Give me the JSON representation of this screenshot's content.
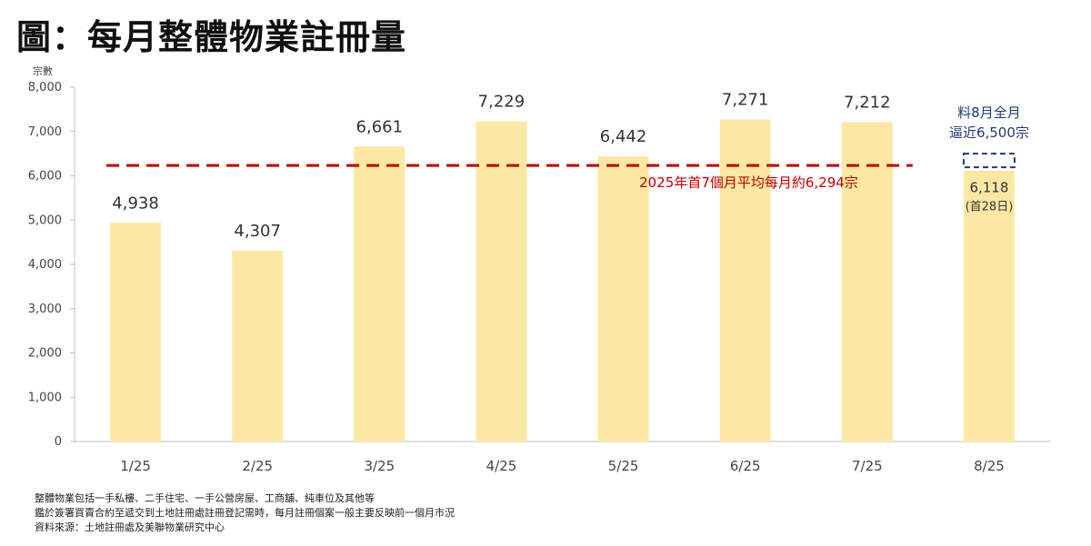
{
  "page_title": "圖：每月整體物業註冊量",
  "colors": {
    "bar": "#fde8a3",
    "average_line": "#c00000",
    "forecast": "#1f3a78",
    "axis_text": "#444444",
    "value_label": "#333333"
  },
  "chart_data": {
    "type": "bar",
    "title": "",
    "xlabel": "",
    "ylabel": "宗數",
    "ylim": [
      0,
      8000
    ],
    "ytick_step": 1000,
    "grid": false,
    "categories": [
      "1/25",
      "2/25",
      "3/25",
      "4/25",
      "5/25",
      "6/25",
      "7/25",
      "8/25"
    ],
    "values": [
      4938,
      4307,
      6661,
      7229,
      6442,
      7271,
      7212,
      6118
    ],
    "value_labels": [
      "4,938",
      "4,307",
      "6,661",
      "7,229",
      "6,442",
      "7,271",
      "7,212",
      "6,118"
    ],
    "partial_month_note": "(首28日)",
    "average": {
      "value": 6294,
      "label": "2025年首7個月平均每月約6,294宗",
      "from_category": "1/25",
      "to_category": "7/25"
    },
    "forecast": {
      "category": "8/25",
      "value": 6500,
      "label_lines": [
        "料8月全月",
        "逼近6,500宗"
      ]
    }
  },
  "notes": [
    "整體物業包括一手私樓、二手住宅、一手公營房屋、工商舖、純車位及其他等",
    "鑑於簽署買賣合約至遞交到土地註冊處註冊登記需時，每月註冊個案一般主要反映前一個月市況",
    "資料來源：土地註冊處及美聯物業研究中心"
  ]
}
